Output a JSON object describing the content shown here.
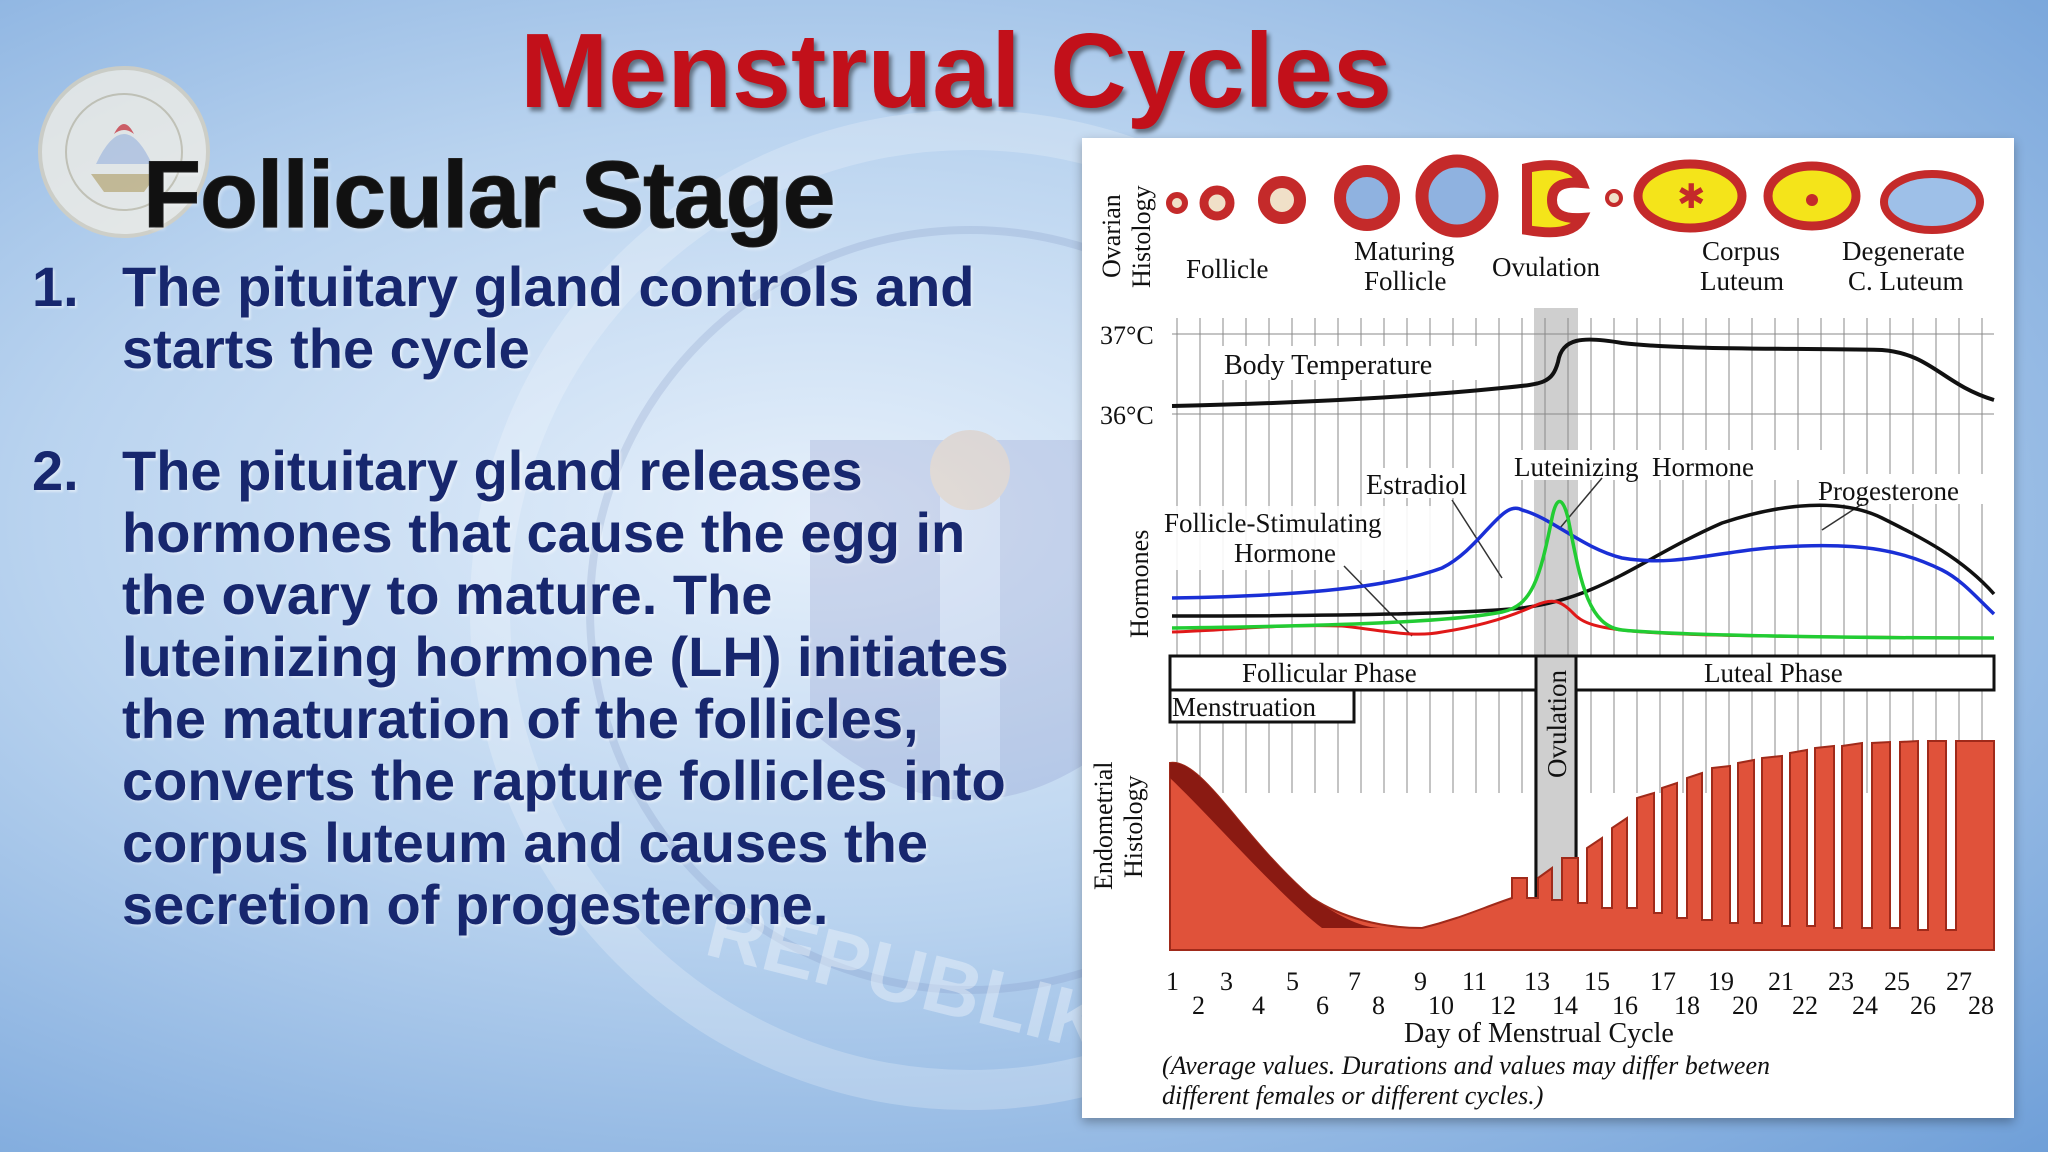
{
  "slide": {
    "title": "Menstrual Cycles",
    "subtitle": "Follicular Stage",
    "points": [
      {
        "number": "1.",
        "text": "The pituitary gland controls and starts the cycle"
      },
      {
        "number": "2.",
        "text": "The pituitary gland releases hormones that cause the egg in the ovary to mature. The luteinizing hormone (LH) initiates the maturation of the follicles, converts the rapture follicles into corpus luteum and causes the secretion of progesterone."
      }
    ],
    "watermark_text": "REPUBLIKA NG"
  },
  "diagram": {
    "ovarian_label": [
      "Ovarian",
      "Histology"
    ],
    "ovarian_stages": [
      {
        "line1": "Follicle",
        "line2": ""
      },
      {
        "line1": "Maturing",
        "line2": "Follicle"
      },
      {
        "line1": "Ovulation",
        "line2": ""
      },
      {
        "line1": "Corpus",
        "line2": "Luteum"
      },
      {
        "line1": "Degenerate",
        "line2": "C. Luteum"
      }
    ],
    "temp_high": "37°C",
    "temp_low": "36°C",
    "temp_label": "Body Temperature",
    "hormones_label": "Hormones",
    "estradiol_label": "Estradiol",
    "lh_label": "Luteinizing  Hormone",
    "progesterone_label": "Progesterone",
    "fsh_label_1": "Follicle-Stimulating",
    "fsh_label_2": "Hormone",
    "follicular_phase": "Follicular Phase",
    "luteal_phase": "Luteal Phase",
    "menstruation": "Menstruation",
    "ovulation_bar": "Ovulation",
    "endometrial_label": [
      "Endometrial",
      "Histology"
    ],
    "days_odd": [
      "1",
      "3",
      "5",
      "7",
      "9",
      "11",
      "13",
      "15",
      "17",
      "19",
      "21",
      "23",
      "25",
      "27"
    ],
    "days_even": [
      "2",
      "4",
      "6",
      "8",
      "10",
      "12",
      "14",
      "16",
      "18",
      "20",
      "22",
      "24",
      "26",
      "28"
    ],
    "x_label": "Day of Menstrual Cycle",
    "note_line1": "(Average values. Durations and values may differ between",
    "note_line2": "different females or different cycles.)",
    "colors": {
      "estradiol": "#1a2fd6",
      "lh": "#22cc33",
      "fsh": "#e01818",
      "progesterone": "#111111",
      "endometrium": "#e0523a",
      "ovulation_band": "#c8c8c8"
    }
  }
}
